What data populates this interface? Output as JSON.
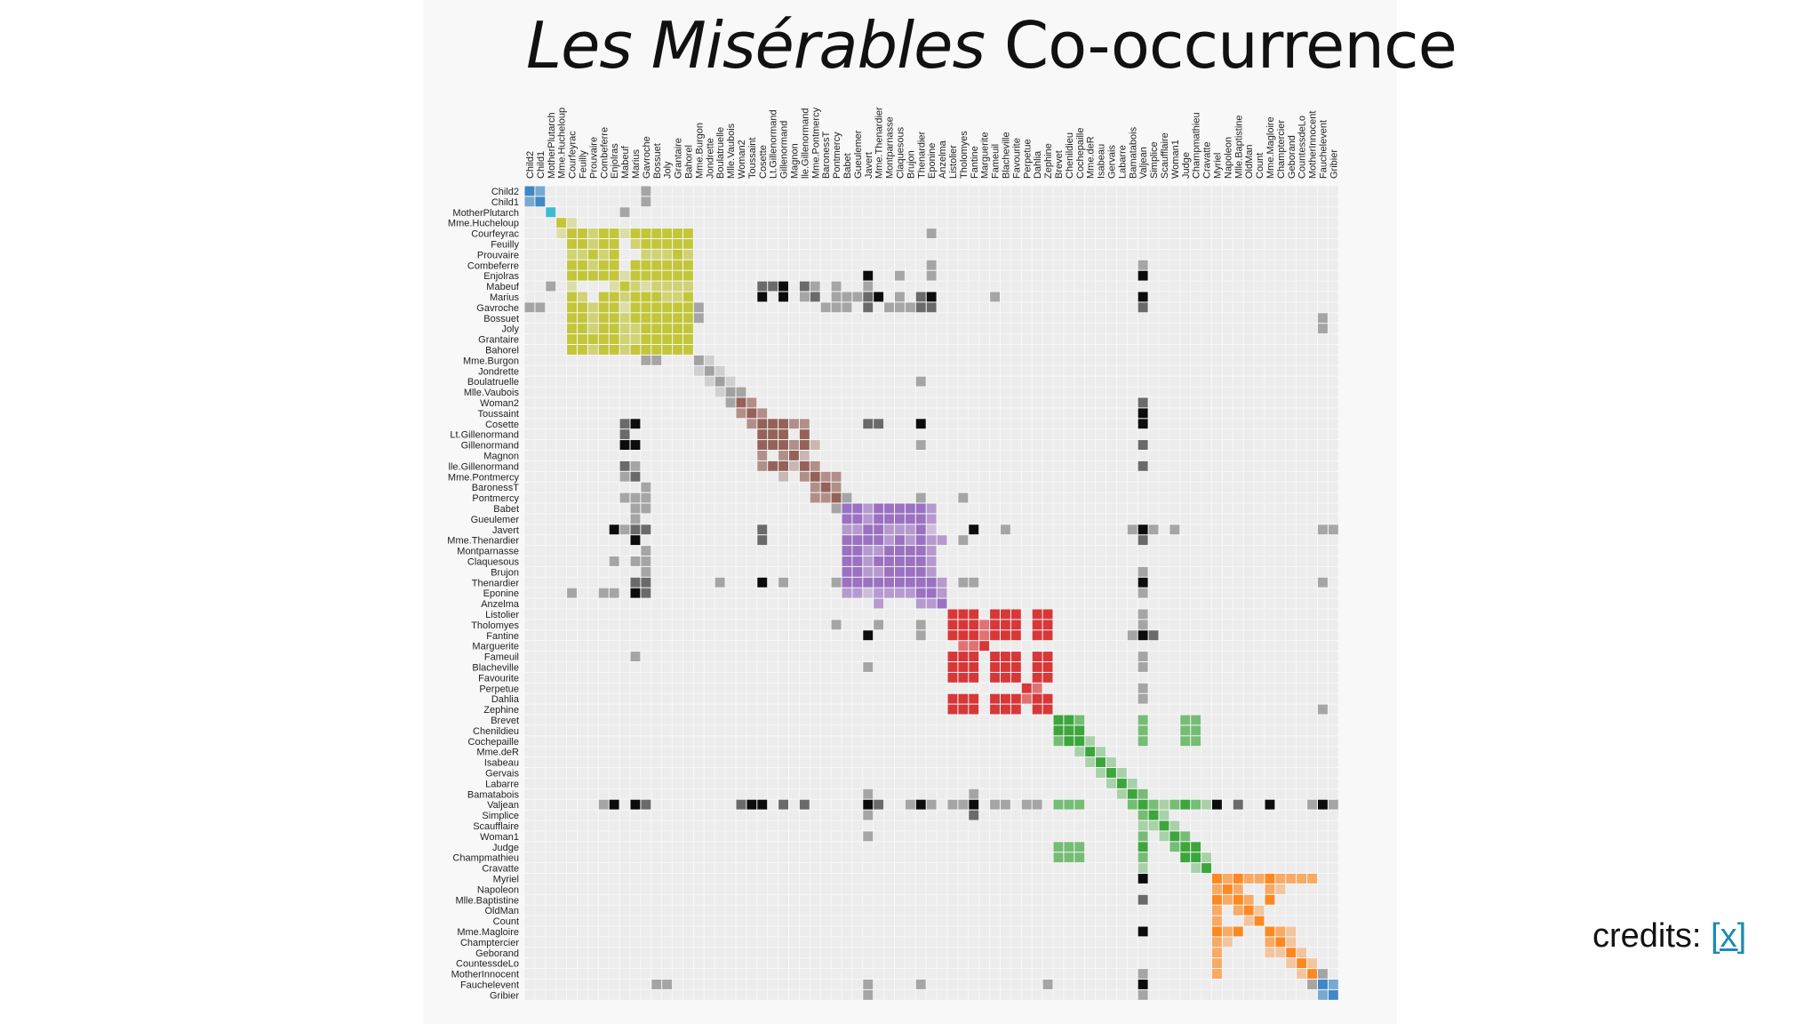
{
  "title": {
    "italic": "Les Misérables",
    "rest": " Co-occurrence"
  },
  "credits": {
    "label": "credits: ",
    "link": "[x]"
  },
  "chart_data": {
    "type": "heatmap",
    "title": "Les Misérables Co-occurrence",
    "labels": [
      "Child2",
      "Child1",
      "MotherPlutarch",
      "Mme.Hucheloup",
      "Courfeyrac",
      "Feuilly",
      "Prouvaire",
      "Combeferre",
      "Enjolras",
      "Mabeuf",
      "Marius",
      "Gavroche",
      "Bossuet",
      "Joly",
      "Grantaire",
      "Bahorel",
      "Mme.Burgon",
      "Jondrette",
      "Boulatruelle",
      "Mlle.Vaubois",
      "Woman2",
      "Toussaint",
      "Cosette",
      "Lt.Gillenormand",
      "Gillenormand",
      "Magnon",
      "lle.Gillenormand",
      "Mme.Pontmercy",
      "BaronessT",
      "Pontmercy",
      "Babet",
      "Gueulemer",
      "Javert",
      "Mme.Thenardier",
      "Montparnasse",
      "Claquesous",
      "Brujon",
      "Thenardier",
      "Eponine",
      "Anzelma",
      "Listolier",
      "Tholomyes",
      "Fantine",
      "Marguerite",
      "Fameuil",
      "Blacheville",
      "Favourite",
      "Perpetue",
      "Dahlia",
      "Zephine",
      "Brevet",
      "Chenildieu",
      "Cochepaille",
      "Mme.deR",
      "Isabeau",
      "Gervais",
      "Labarre",
      "Bamatabois",
      "Valjean",
      "Simplice",
      "Scaufflaire",
      "Woman1",
      "Judge",
      "Champmathieu",
      "Cravatte",
      "Myriel",
      "Napoleon",
      "Mlle.Baptistine",
      "OldMan",
      "Count",
      "Mme.Magloire",
      "Champtercier",
      "Geborand",
      "CountessdeLo",
      "MotherInnocent",
      "Fauchelevent",
      "Gribier"
    ],
    "groups": [
      {
        "range": [
          0,
          1
        ],
        "color": "#2f7fc1"
      },
      {
        "range": [
          2,
          2
        ],
        "color": "#2ab7d4"
      },
      {
        "range": [
          3,
          15
        ],
        "color": "#bfc228"
      },
      {
        "range": [
          16,
          19
        ],
        "color": "#9a9a9a"
      },
      {
        "range": [
          20,
          29
        ],
        "color": "#8c564b"
      },
      {
        "range": [
          30,
          39
        ],
        "color": "#9467bd"
      },
      {
        "range": [
          40,
          49
        ],
        "color": "#d62728"
      },
      {
        "range": [
          50,
          64
        ],
        "color": "#2ca02c"
      },
      {
        "range": [
          65,
          74
        ],
        "color": "#ff7f0e"
      },
      {
        "range": [
          75,
          76
        ],
        "color": "#2f7fc1"
      }
    ],
    "cross_group_color": "#000000",
    "links": [
      [
        0,
        1,
        2
      ],
      [
        0,
        11,
        1
      ],
      [
        1,
        11,
        1
      ],
      [
        2,
        9,
        1
      ],
      [
        3,
        4,
        1
      ],
      [
        4,
        5,
        3
      ],
      [
        4,
        6,
        2
      ],
      [
        4,
        7,
        3
      ],
      [
        4,
        8,
        3
      ],
      [
        4,
        9,
        1
      ],
      [
        4,
        10,
        3
      ],
      [
        4,
        11,
        3
      ],
      [
        4,
        12,
        3
      ],
      [
        4,
        13,
        3
      ],
      [
        4,
        14,
        3
      ],
      [
        4,
        15,
        3
      ],
      [
        5,
        6,
        2
      ],
      [
        5,
        7,
        3
      ],
      [
        5,
        8,
        3
      ],
      [
        5,
        10,
        2
      ],
      [
        5,
        11,
        3
      ],
      [
        5,
        12,
        3
      ],
      [
        5,
        13,
        3
      ],
      [
        5,
        14,
        3
      ],
      [
        5,
        15,
        3
      ],
      [
        6,
        7,
        2
      ],
      [
        6,
        8,
        3
      ],
      [
        6,
        11,
        2
      ],
      [
        6,
        12,
        2
      ],
      [
        6,
        13,
        2
      ],
      [
        6,
        14,
        3
      ],
      [
        6,
        15,
        2
      ],
      [
        7,
        8,
        3
      ],
      [
        7,
        10,
        3
      ],
      [
        7,
        11,
        3
      ],
      [
        7,
        12,
        3
      ],
      [
        7,
        13,
        3
      ],
      [
        7,
        14,
        3
      ],
      [
        7,
        15,
        3
      ],
      [
        8,
        9,
        1
      ],
      [
        8,
        10,
        3
      ],
      [
        8,
        11,
        3
      ],
      [
        8,
        12,
        3
      ],
      [
        8,
        13,
        3
      ],
      [
        8,
        14,
        3
      ],
      [
        8,
        15,
        3
      ],
      [
        9,
        10,
        2
      ],
      [
        9,
        11,
        1
      ],
      [
        9,
        12,
        2
      ],
      [
        9,
        13,
        2
      ],
      [
        9,
        14,
        2
      ],
      [
        9,
        15,
        2
      ],
      [
        10,
        11,
        3
      ],
      [
        10,
        12,
        3
      ],
      [
        10,
        13,
        2
      ],
      [
        10,
        14,
        2
      ],
      [
        10,
        15,
        3
      ],
      [
        11,
        12,
        3
      ],
      [
        11,
        13,
        3
      ],
      [
        11,
        14,
        3
      ],
      [
        11,
        15,
        3
      ],
      [
        12,
        13,
        3
      ],
      [
        12,
        14,
        3
      ],
      [
        12,
        15,
        3
      ],
      [
        13,
        14,
        3
      ],
      [
        13,
        15,
        3
      ],
      [
        14,
        15,
        3
      ],
      [
        11,
        16,
        1
      ],
      [
        12,
        16,
        1
      ],
      [
        16,
        17,
        1
      ],
      [
        17,
        18,
        1
      ],
      [
        18,
        19,
        1
      ],
      [
        19,
        20,
        1
      ],
      [
        20,
        21,
        2
      ],
      [
        21,
        22,
        2
      ],
      [
        22,
        23,
        3
      ],
      [
        22,
        24,
        3
      ],
      [
        22,
        25,
        2
      ],
      [
        22,
        26,
        2
      ],
      [
        23,
        24,
        3
      ],
      [
        23,
        26,
        3
      ],
      [
        24,
        26,
        3
      ],
      [
        24,
        25,
        2
      ],
      [
        24,
        27,
        1
      ],
      [
        25,
        26,
        1
      ],
      [
        26,
        27,
        2
      ],
      [
        27,
        28,
        2
      ],
      [
        28,
        29,
        2
      ],
      [
        29,
        30,
        1
      ],
      [
        30,
        31,
        3
      ],
      [
        30,
        32,
        2
      ],
      [
        30,
        33,
        3
      ],
      [
        30,
        34,
        3
      ],
      [
        30,
        35,
        3
      ],
      [
        30,
        36,
        3
      ],
      [
        30,
        37,
        3
      ],
      [
        30,
        38,
        2
      ],
      [
        31,
        32,
        2
      ],
      [
        31,
        33,
        3
      ],
      [
        31,
        34,
        3
      ],
      [
        31,
        35,
        3
      ],
      [
        31,
        36,
        3
      ],
      [
        31,
        37,
        3
      ],
      [
        31,
        38,
        2
      ],
      [
        32,
        33,
        3
      ],
      [
        32,
        34,
        2
      ],
      [
        32,
        35,
        2
      ],
      [
        32,
        36,
        2
      ],
      [
        32,
        37,
        3
      ],
      [
        32,
        38,
        1
      ],
      [
        33,
        34,
        2
      ],
      [
        33,
        35,
        3
      ],
      [
        33,
        36,
        2
      ],
      [
        33,
        37,
        3
      ],
      [
        33,
        38,
        2
      ],
      [
        33,
        39,
        2
      ],
      [
        34,
        35,
        3
      ],
      [
        34,
        36,
        3
      ],
      [
        34,
        37,
        3
      ],
      [
        34,
        38,
        2
      ],
      [
        35,
        36,
        3
      ],
      [
        35,
        37,
        3
      ],
      [
        35,
        38,
        2
      ],
      [
        36,
        37,
        3
      ],
      [
        36,
        38,
        2
      ],
      [
        37,
        38,
        3
      ],
      [
        37,
        39,
        2
      ],
      [
        38,
        39,
        2
      ],
      [
        40,
        41,
        3
      ],
      [
        40,
        42,
        3
      ],
      [
        40,
        44,
        3
      ],
      [
        40,
        45,
        3
      ],
      [
        40,
        46,
        3
      ],
      [
        40,
        48,
        3
      ],
      [
        40,
        49,
        3
      ],
      [
        41,
        42,
        3
      ],
      [
        41,
        43,
        2
      ],
      [
        41,
        44,
        3
      ],
      [
        41,
        45,
        3
      ],
      [
        41,
        46,
        3
      ],
      [
        41,
        48,
        3
      ],
      [
        41,
        49,
        3
      ],
      [
        42,
        44,
        3
      ],
      [
        42,
        45,
        3
      ],
      [
        42,
        46,
        3
      ],
      [
        42,
        48,
        3
      ],
      [
        42,
        49,
        3
      ],
      [
        44,
        45,
        3
      ],
      [
        44,
        46,
        3
      ],
      [
        44,
        48,
        3
      ],
      [
        44,
        49,
        3
      ],
      [
        45,
        46,
        3
      ],
      [
        45,
        48,
        3
      ],
      [
        45,
        49,
        3
      ],
      [
        46,
        48,
        3
      ],
      [
        46,
        49,
        3
      ],
      [
        48,
        49,
        3
      ],
      [
        43,
        42,
        2
      ],
      [
        47,
        48,
        2
      ],
      [
        50,
        51,
        3
      ],
      [
        50,
        52,
        2
      ],
      [
        51,
        52,
        3
      ],
      [
        50,
        58,
        2
      ],
      [
        51,
        58,
        2
      ],
      [
        52,
        58,
        2
      ],
      [
        50,
        62,
        2
      ],
      [
        51,
        62,
        2
      ],
      [
        52,
        62,
        2
      ],
      [
        50,
        63,
        2
      ],
      [
        51,
        63,
        2
      ],
      [
        52,
        63,
        2
      ],
      [
        58,
        63,
        2
      ],
      [
        62,
        63,
        3
      ],
      [
        58,
        62,
        2
      ],
      [
        52,
        53,
        1
      ],
      [
        53,
        54,
        1
      ],
      [
        54,
        55,
        1
      ],
      [
        55,
        56,
        1
      ],
      [
        56,
        57,
        1
      ],
      [
        57,
        58,
        2
      ],
      [
        58,
        59,
        2
      ],
      [
        58,
        60,
        1
      ],
      [
        58,
        61,
        2
      ],
      [
        59,
        60,
        1
      ],
      [
        60,
        61,
        1
      ],
      [
        61,
        62,
        2
      ],
      [
        63,
        64,
        1
      ],
      [
        58,
        64,
        1
      ],
      [
        65,
        66,
        2
      ],
      [
        65,
        67,
        3
      ],
      [
        65,
        68,
        2
      ],
      [
        65,
        69,
        2
      ],
      [
        65,
        70,
        3
      ],
      [
        65,
        71,
        2
      ],
      [
        65,
        72,
        2
      ],
      [
        65,
        73,
        2
      ],
      [
        65,
        74,
        2
      ],
      [
        66,
        67,
        2
      ],
      [
        67,
        70,
        3
      ],
      [
        66,
        70,
        2
      ],
      [
        67,
        68,
        2
      ],
      [
        70,
        71,
        2
      ],
      [
        66,
        71,
        1
      ],
      [
        68,
        69,
        1
      ],
      [
        70,
        72,
        1
      ],
      [
        71,
        72,
        1
      ],
      [
        72,
        73,
        1
      ],
      [
        73,
        74,
        1
      ],
      [
        75,
        76,
        2
      ],
      [
        74,
        75,
        1
      ],
      [
        10,
        22,
        3
      ],
      [
        10,
        24,
        3
      ],
      [
        10,
        32,
        2
      ],
      [
        10,
        33,
        3
      ],
      [
        10,
        37,
        2
      ],
      [
        10,
        38,
        3
      ],
      [
        10,
        58,
        3
      ],
      [
        10,
        30,
        1
      ],
      [
        10,
        35,
        1
      ],
      [
        10,
        31,
        1
      ],
      [
        10,
        26,
        1
      ],
      [
        10,
        27,
        2
      ],
      [
        10,
        29,
        1
      ],
      [
        10,
        44,
        1
      ],
      [
        11,
        32,
        2
      ],
      [
        11,
        34,
        1
      ],
      [
        11,
        35,
        1
      ],
      [
        11,
        37,
        2
      ],
      [
        11,
        38,
        2
      ],
      [
        11,
        58,
        2
      ],
      [
        11,
        30,
        1
      ],
      [
        11,
        36,
        1
      ],
      [
        11,
        28,
        1
      ],
      [
        11,
        29,
        1
      ],
      [
        8,
        32,
        3
      ],
      [
        8,
        38,
        1
      ],
      [
        8,
        58,
        3
      ],
      [
        8,
        35,
        1
      ],
      [
        7,
        38,
        1
      ],
      [
        7,
        58,
        1
      ],
      [
        4,
        38,
        1
      ],
      [
        18,
        37,
        1
      ],
      [
        9,
        22,
        2
      ],
      [
        9,
        23,
        2
      ],
      [
        9,
        24,
        3
      ],
      [
        9,
        26,
        2
      ],
      [
        9,
        27,
        1
      ],
      [
        9,
        29,
        1
      ],
      [
        9,
        32,
        1
      ],
      [
        22,
        58,
        3
      ],
      [
        22,
        32,
        2
      ],
      [
        22,
        37,
        3
      ],
      [
        22,
        33,
        2
      ],
      [
        24,
        58,
        2
      ],
      [
        24,
        37,
        1
      ],
      [
        26,
        58,
        2
      ],
      [
        21,
        58,
        3
      ],
      [
        20,
        58,
        2
      ],
      [
        29,
        37,
        1
      ],
      [
        27,
        29,
        2
      ],
      [
        32,
        58,
        3
      ],
      [
        32,
        42,
        3
      ],
      [
        32,
        33,
        1
      ],
      [
        32,
        45,
        1
      ],
      [
        32,
        59,
        1
      ],
      [
        32,
        61,
        1
      ],
      [
        32,
        76,
        1
      ],
      [
        32,
        37,
        2
      ],
      [
        32,
        57,
        1
      ],
      [
        33,
        58,
        2
      ],
      [
        37,
        58,
        3
      ],
      [
        38,
        58,
        1
      ],
      [
        36,
        58,
        1
      ],
      [
        42,
        58,
        3
      ],
      [
        42,
        57,
        1
      ],
      [
        42,
        59,
        2
      ],
      [
        42,
        37,
        1
      ],
      [
        42,
        43,
        1
      ],
      [
        42,
        32,
        3
      ],
      [
        41,
        37,
        1
      ],
      [
        41,
        33,
        1
      ],
      [
        41,
        29,
        1
      ],
      [
        58,
        65,
        3
      ],
      [
        58,
        67,
        2
      ],
      [
        58,
        70,
        3
      ],
      [
        58,
        74,
        1
      ],
      [
        58,
        75,
        3
      ],
      [
        58,
        76,
        1
      ],
      [
        58,
        41,
        1
      ],
      [
        58,
        47,
        1
      ],
      [
        58,
        45,
        1
      ],
      [
        58,
        44,
        1
      ],
      [
        58,
        40,
        1
      ],
      [
        58,
        48,
        1
      ],
      [
        58,
        63,
        1
      ],
      [
        58,
        62,
        3
      ],
      [
        58,
        57,
        2
      ],
      [
        58,
        61,
        2
      ],
      [
        58,
        59,
        2
      ],
      [
        58,
        60,
        1
      ],
      [
        58,
        52,
        1
      ],
      [
        58,
        51,
        1
      ],
      [
        58,
        50,
        1
      ],
      [
        75,
        32,
        1
      ],
      [
        75,
        58,
        3
      ],
      [
        75,
        12,
        1
      ],
      [
        75,
        13,
        1
      ],
      [
        75,
        37,
        1
      ],
      [
        75,
        49,
        1
      ],
      [
        36,
        33,
        1
      ]
    ]
  }
}
